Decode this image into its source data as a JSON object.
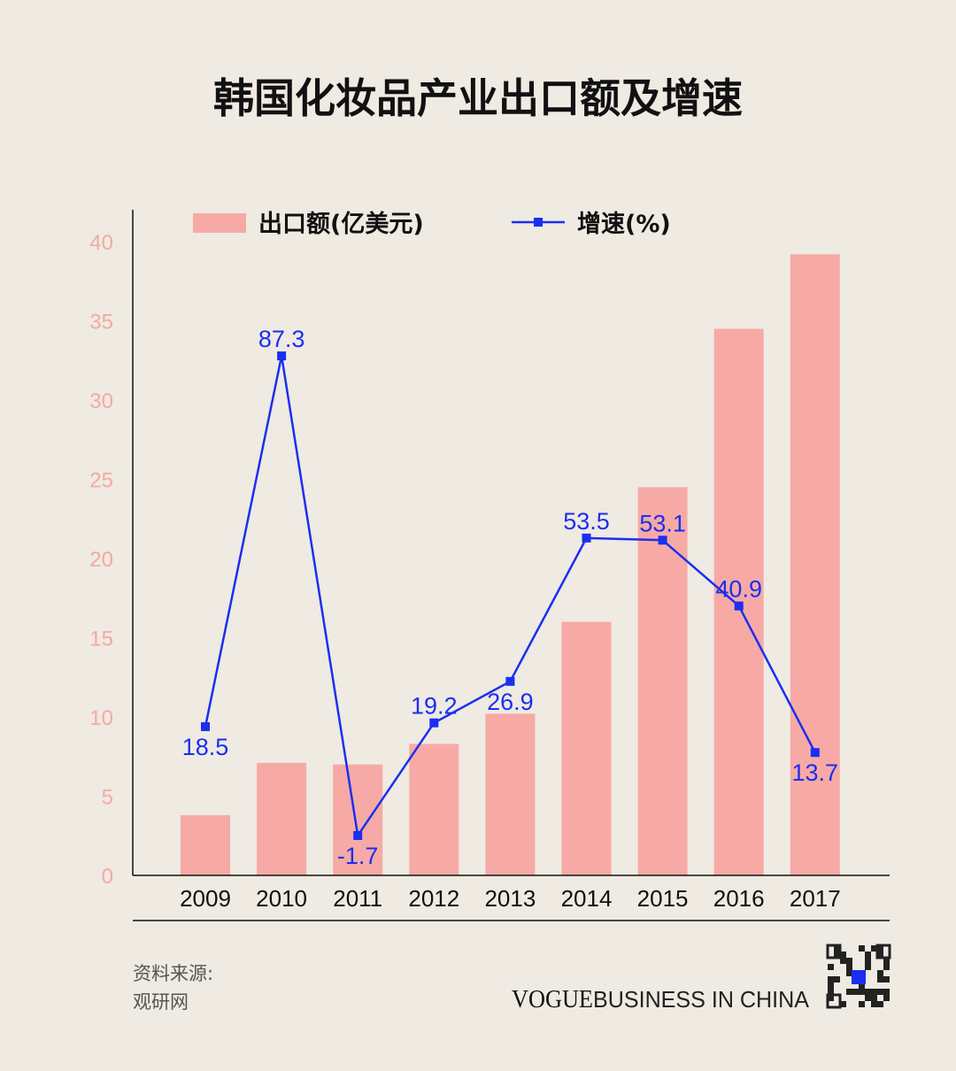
{
  "chart_data": {
    "type": "bar+line",
    "title": "韩国化妆品产业出口额及增速",
    "categories": [
      "2009",
      "2010",
      "2011",
      "2012",
      "2013",
      "2014",
      "2015",
      "2016",
      "2017"
    ],
    "series": [
      {
        "name": "出口额(亿美元)",
        "type": "bar",
        "color": "#f7aaa5",
        "values": [
          3.8,
          7.1,
          7.0,
          8.3,
          10.2,
          16.0,
          24.5,
          34.5,
          39.2
        ]
      },
      {
        "name": "增速(%)",
        "type": "line",
        "color": "#1a2ff0",
        "values": [
          18.5,
          87.3,
          -1.7,
          19.2,
          26.9,
          53.5,
          53.1,
          40.9,
          13.7
        ],
        "labels": [
          "18.5",
          "87.3",
          "-1.7",
          "19.2",
          "26.9",
          "53.5",
          "53.1",
          "40.9",
          "13.7"
        ]
      }
    ],
    "yticks": [
      "0",
      "5",
      "10",
      "15",
      "20",
      "25",
      "30",
      "35",
      "40"
    ],
    "ylim": [
      0,
      40
    ],
    "y2lim": [
      -9.1,
      108.5
    ],
    "grid": false,
    "legend": "top"
  },
  "footer": {
    "source_label": "资料来源:",
    "source": "观研网",
    "brand_vogue": "VOGUE",
    "brand_rest": "BUSINESS IN CHINA"
  }
}
